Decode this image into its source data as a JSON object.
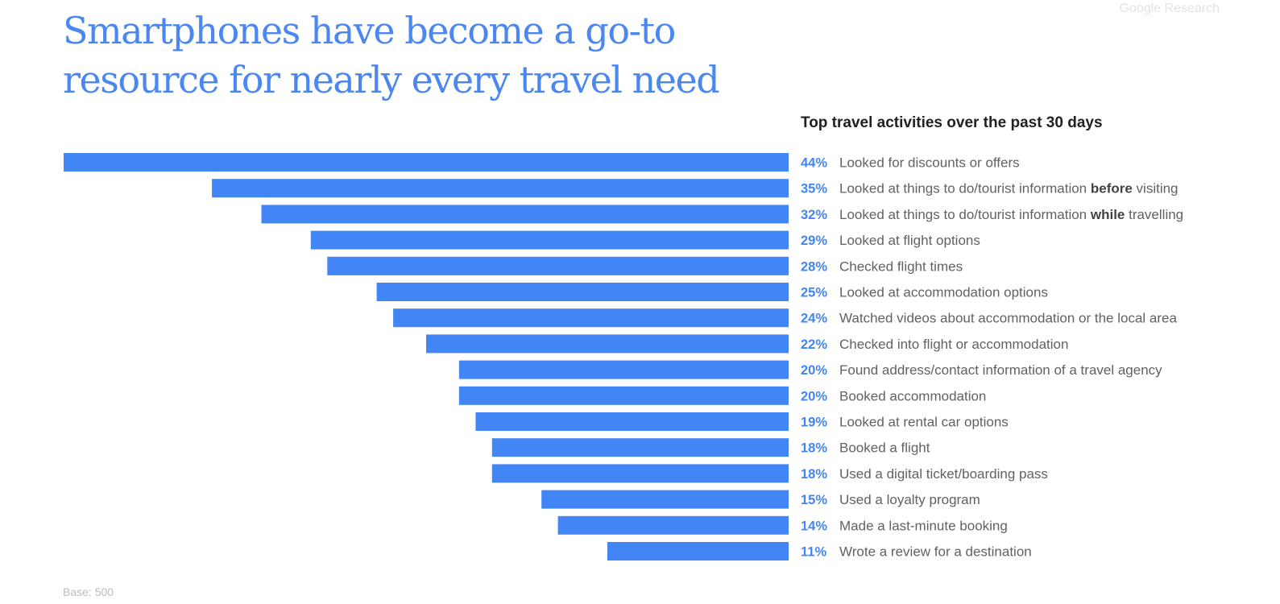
{
  "source_label": "Google Research",
  "headline": "Smartphones have become a go-to resource for nearly every travel need",
  "base_note": "Base: 500",
  "colors": {
    "bar": "#4285f4",
    "headline": "#4a87f0",
    "label": "#616161"
  },
  "chart_data": {
    "type": "bar",
    "orientation": "horizontal",
    "title": "Top travel activities over the past 30 days",
    "unit": "%",
    "xlim": [
      0,
      44
    ],
    "categories": [
      "Looked for discounts or offers",
      "Looked at things to do/tourist information before visiting",
      "Looked at things to do/tourist information while travelling",
      "Looked at flight options",
      "Checked flight times",
      "Looked at accommodation options",
      "Watched videos about accommodation or the local area",
      "Checked into flight or accommodation",
      "Found address/contact information of a travel agency",
      "Booked accommodation",
      "Looked at rental car options",
      "Booked a flight",
      "Used a digital ticket/boarding pass",
      "Used a loyalty program",
      "Made a last-minute booking",
      "Wrote a review for a destination"
    ],
    "values": [
      44,
      35,
      32,
      29,
      28,
      25,
      24,
      22,
      20,
      20,
      19,
      18,
      18,
      15,
      14,
      11
    ],
    "value_labels": [
      "44%",
      "35%",
      "32%",
      "29%",
      "28%",
      "25%",
      "24%",
      "22%",
      "20%",
      "20%",
      "19%",
      "18%",
      "18%",
      "15%",
      "14%",
      "11%"
    ],
    "emphasis": [
      "",
      "before",
      "while",
      "",
      "",
      "",
      "",
      "",
      "",
      "",
      "",
      "",
      "",
      "",
      "",
      ""
    ]
  }
}
